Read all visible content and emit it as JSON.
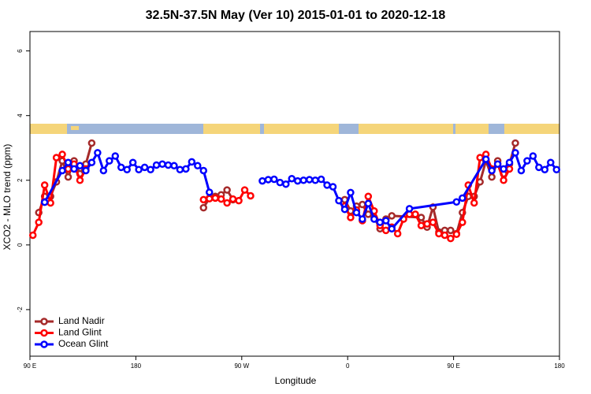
{
  "chart_data": {
    "type": "line",
    "title": "32.5N-37.5N May (Ver 10)   2015-01-01 to 2020-12-18",
    "xlabel": "Longitude",
    "ylabel": "XCO2 - MLO trend (ppm)",
    "xlim": [
      90,
      540
    ],
    "ylim": [
      -3.44,
      6.6
    ],
    "xticks": [
      {
        "value": 90,
        "label": "90 E"
      },
      180,
      {
        "value": 270,
        "label": "90 W"
      },
      {
        "value": 360,
        "label": "0"
      },
      {
        "value": 450,
        "label": "90 E"
      },
      {
        "value": 540,
        "label": "180"
      }
    ],
    "yticks": [
      -2,
      0,
      2,
      4,
      6
    ],
    "legend": "bottom-left",
    "series": [
      {
        "name": "Land Nadir",
        "color": "#a52a2a",
        "x": [
          97.5,
          102.5,
          107.5,
          112.5,
          117.5,
          122.5,
          127.5,
          132.5,
          137.5,
          142.5,
          190,
          237.5,
          242.5,
          247.5,
          252.5,
          257.5,
          262.5,
          310,
          357.5,
          362.5,
          367.5,
          372.5,
          377.5,
          382.5,
          387.5,
          392.5,
          397.5,
          422.5,
          427.5,
          432.5,
          437.5,
          442.5,
          447.5,
          452.5,
          457.5,
          462.5,
          467.5,
          472.5,
          477.5,
          482.5,
          487.5,
          492.5,
          497.5,
          502.5
        ],
        "values": [
          1.0,
          1.5,
          1.5,
          1.95,
          2.6,
          2.1,
          2.6,
          2.2,
          2.5,
          3.15,
          null,
          1.15,
          1.45,
          1.5,
          1.55,
          1.7,
          1.4,
          null,
          1.4,
          1.05,
          1.2,
          1.25,
          0.95,
          0.85,
          0.5,
          0.8,
          0.9,
          0.85,
          0.55,
          1.17,
          0.4,
          0.45,
          0.45,
          0.35,
          1.0,
          1.5,
          1.5,
          1.95,
          2.6,
          2.1,
          2.6,
          2.2,
          2.5,
          3.15
        ]
      },
      {
        "name": "Land Glint",
        "color": "#ff0000",
        "x": [
          92.5,
          97.5,
          102.5,
          107.5,
          112.5,
          117.5,
          122.5,
          127.5,
          132.5,
          137.5,
          190,
          237.5,
          242.5,
          247.5,
          252.5,
          257.5,
          262.5,
          267.5,
          272.5,
          277.5,
          320,
          357.5,
          362.5,
          367.5,
          372.5,
          377.5,
          382.5,
          387.5,
          392.5,
          397.5,
          402.5,
          407.5,
          412.5,
          417.5,
          422.5,
          427.5,
          432.5,
          437.5,
          442.5,
          447.5,
          452.5,
          457.5,
          462.5,
          467.5,
          472.5,
          477.5,
          482.5,
          487.5,
          492.5,
          497.5
        ],
        "values": [
          0.3,
          0.7,
          1.85,
          1.3,
          2.7,
          2.8,
          2.35,
          2.5,
          2.0,
          2.35,
          null,
          1.4,
          1.43,
          1.45,
          1.42,
          1.3,
          1.42,
          1.37,
          1.7,
          1.52,
          null,
          1.2,
          0.85,
          1.08,
          0.75,
          1.5,
          1.05,
          0.6,
          0.45,
          0.55,
          0.35,
          0.8,
          0.95,
          0.95,
          0.6,
          0.65,
          0.7,
          0.35,
          0.3,
          0.2,
          0.33,
          0.7,
          1.85,
          1.3,
          2.7,
          2.8,
          2.35,
          2.5,
          2.0,
          2.35
        ]
      },
      {
        "name": "Ocean Glint",
        "color": "#0000ff",
        "x": [
          102.5,
          117.5,
          122.5,
          127.5,
          132.5,
          137.5,
          142.5,
          147.5,
          152.5,
          157.5,
          162.5,
          167.5,
          172.5,
          177.5,
          182.5,
          187.5,
          192.5,
          197.5,
          202.5,
          207.5,
          212.5,
          217.5,
          222.5,
          227.5,
          232.5,
          237.5,
          242.5,
          265,
          287.5,
          292.5,
          297.5,
          302.5,
          307.5,
          312.5,
          317.5,
          322.5,
          327.5,
          332.5,
          337.5,
          342.5,
          347.5,
          352.5,
          357.5,
          362.5,
          367.5,
          372.5,
          377.5,
          382.5,
          387.5,
          392.5,
          397.5,
          412.5,
          452.5,
          457.5,
          477.5,
          482.5,
          487.5,
          492.5,
          497.5,
          502.5,
          507.5,
          512.5,
          517.5,
          522.5,
          527.5,
          532.5,
          537.5
        ],
        "values": [
          1.32,
          2.3,
          2.55,
          2.35,
          2.45,
          2.3,
          2.55,
          2.85,
          2.3,
          2.6,
          2.75,
          2.4,
          2.33,
          2.55,
          2.33,
          2.4,
          2.33,
          2.47,
          2.5,
          2.47,
          2.45,
          2.33,
          2.35,
          2.57,
          2.45,
          2.3,
          1.63,
          null,
          1.98,
          2.02,
          2.03,
          1.93,
          1.88,
          2.05,
          1.98,
          2.0,
          2.02,
          2.0,
          2.03,
          1.85,
          1.8,
          1.37,
          1.1,
          1.62,
          1.0,
          0.8,
          1.28,
          0.8,
          0.7,
          0.75,
          0.5,
          1.12,
          1.33,
          1.45,
          2.65,
          2.3,
          2.5,
          2.35,
          2.55,
          2.85,
          2.3,
          2.6,
          2.75,
          2.4,
          2.33,
          2.55,
          2.33
        ]
      }
    ]
  }
}
